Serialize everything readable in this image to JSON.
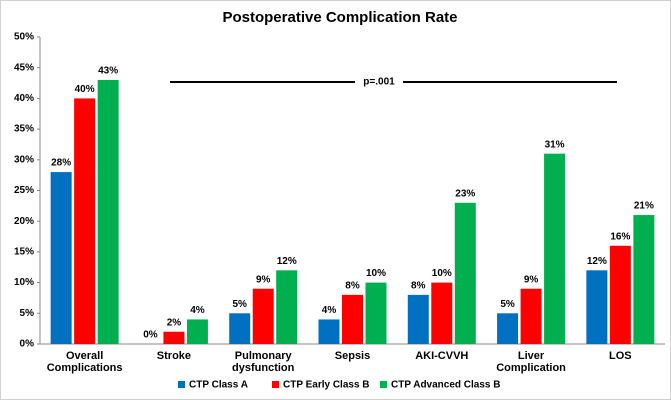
{
  "chart_data": {
    "type": "bar",
    "title": "Postoperative Complication Rate",
    "categories": [
      "Overall Complications",
      "Stroke",
      "Pulmonary dysfunction",
      "Sepsis",
      "AKI-CVVH",
      "Liver Complication",
      "LOS"
    ],
    "series": [
      {
        "name": "CTP Class A",
        "color": "#0070c0",
        "values": [
          28,
          0,
          5,
          4,
          8,
          5,
          12
        ],
        "value_labels": [
          "28%",
          "0%",
          "5%",
          "4%",
          "8%",
          "5%",
          "12%"
        ]
      },
      {
        "name": "CTP Early Class B",
        "color": "#ff0000",
        "values": [
          40,
          2,
          9,
          8,
          10,
          9,
          16
        ],
        "value_labels": [
          "40%",
          "2%",
          "9%",
          "8%",
          "10%",
          "9%",
          "16%"
        ]
      },
      {
        "name": "CTP Advanced Class B",
        "color": "#00b050",
        "values": [
          43,
          4,
          12,
          10,
          23,
          31,
          21
        ],
        "value_labels": [
          "43%",
          "4%",
          "12%",
          "10%",
          "23%",
          "31%",
          "21%"
        ]
      }
    ],
    "annotations": [
      "p=.001"
    ],
    "ylim": [
      0,
      50
    ],
    "yticks": [
      {
        "value": 0,
        "label": "0%"
      },
      {
        "value": 5,
        "label": "5%"
      },
      {
        "value": 10,
        "label": "10%"
      },
      {
        "value": 15,
        "label": "15%"
      },
      {
        "value": 20,
        "label": "20%"
      },
      {
        "value": 25,
        "label": "25%"
      },
      {
        "value": 30,
        "label": "30%"
      },
      {
        "value": 35,
        "label": "35%"
      },
      {
        "value": 40,
        "label": "40%"
      },
      {
        "value": 45,
        "label": "45%"
      },
      {
        "value": 50,
        "label": "50%"
      }
    ],
    "grid": false,
    "legend": "bottom"
  }
}
